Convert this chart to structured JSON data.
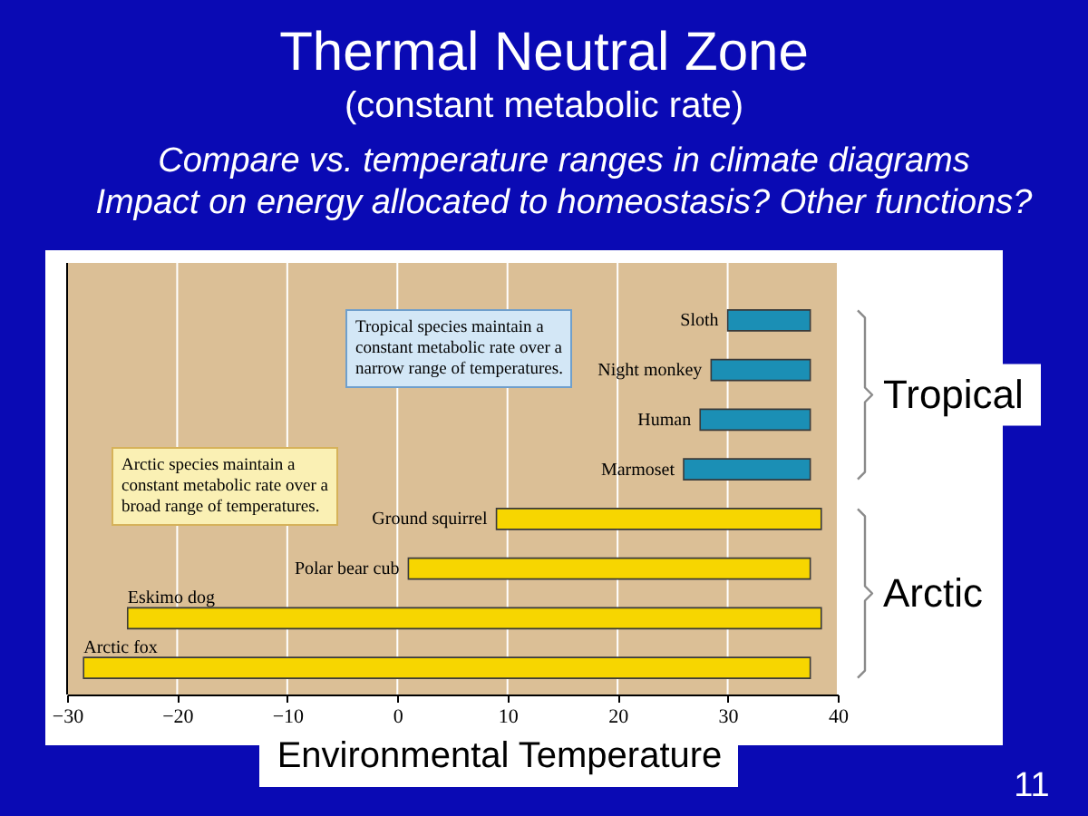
{
  "chart_data": {
    "type": "bar",
    "orientation": "horizontal",
    "title": "Thermal Neutral Zone",
    "subtitle": "(constant metabolic rate)",
    "xlabel": "Environmental Temperature",
    "categories": [
      "Sloth",
      "Night monkey",
      "Human",
      "Marmoset",
      "Ground squirrel",
      "Polar bear cub",
      "Eskimo dog",
      "Arctic fox"
    ],
    "base": [
      30,
      28.5,
      27.5,
      26,
      9,
      1,
      -24.5,
      -28.5
    ],
    "values": [
      7.5,
      9,
      10,
      11.5,
      29.5,
      36.5,
      63,
      66
    ],
    "colors": [
      "#1b8fb5",
      "#1b8fb5",
      "#1b8fb5",
      "#1b8fb5",
      "#f7d600",
      "#f7d600",
      "#f7d600",
      "#f7d600"
    ],
    "xlim": [
      -30,
      40
    ],
    "xticks": [
      -30,
      -20,
      -10,
      0,
      10,
      20,
      30,
      40
    ],
    "grid": "x",
    "annotations": [
      "Compare vs. temperature ranges in climate diagrams",
      "Impact on energy allocated to homeostasis? Other functions?",
      "Tropical species maintain a constant metabolic rate over a narrow range of temperatures.",
      "Arctic species maintain a constant metabolic rate over a broad range of temperatures.",
      "Tropical",
      "Arctic",
      "11"
    ]
  }
}
